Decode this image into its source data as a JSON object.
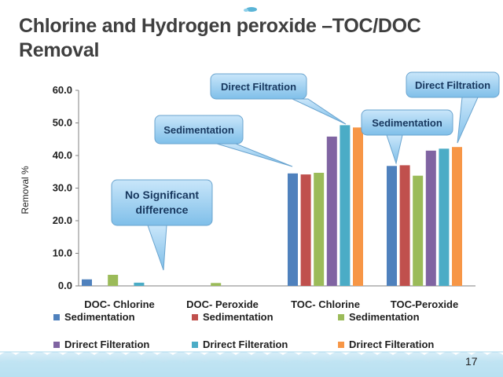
{
  "slide": {
    "title_line1": "Chlorine and Hydrogen peroxide –TOC/DOC",
    "title_line2": "Removal",
    "slide_number": "17"
  },
  "chart_data": {
    "type": "bar",
    "title": "Chlorine and Hydrogen peroxide –TOC/DOC Removal",
    "ylabel": "Removal %",
    "xlabel": "",
    "ylim": [
      0,
      60
    ],
    "yticks": [
      "0.0",
      "10.0",
      "20.0",
      "30.0",
      "40.0",
      "50.0",
      "60.0"
    ],
    "grid": false,
    "legend": "bottom",
    "categories": [
      "DOC- Chlorine",
      "DOC- Peroxide",
      "TOC- Chlorine",
      "TOC-Peroxide"
    ],
    "series": [
      {
        "name": "Sedimentation",
        "color": "#4f81bd",
        "values": [
          2.0,
          0,
          34.5,
          36.8
        ]
      },
      {
        "name": "Sedimentation",
        "color": "#c0504d",
        "values": [
          0,
          0,
          34.2,
          37.0
        ]
      },
      {
        "name": "Sedimentation",
        "color": "#9bbb59",
        "values": [
          3.4,
          0.9,
          34.7,
          33.8
        ]
      },
      {
        "name": "Drirect Filteration",
        "color": "#8064a2",
        "values": [
          0,
          0,
          45.8,
          41.5
        ]
      },
      {
        "name": "Drirect Filteration",
        "color": "#4bacc6",
        "values": [
          1.0,
          0,
          49.3,
          42.1
        ]
      },
      {
        "name": "Drirect Filteration",
        "color": "#f79646",
        "values": [
          0,
          0,
          48.6,
          42.6
        ]
      }
    ],
    "annotations": [
      {
        "text": "No Significant difference"
      },
      {
        "text": "Sedimentation"
      },
      {
        "text": "Direct Filtration"
      },
      {
        "text": "Sedimentation"
      },
      {
        "text": "Direct Filtration"
      }
    ]
  }
}
